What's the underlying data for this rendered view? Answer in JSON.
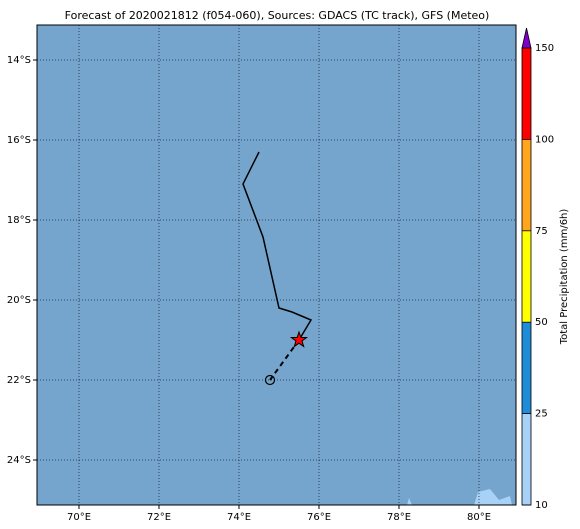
{
  "map": {
    "title": "Forecast of 2020021812 (f054-060), Sources: GDACS (TC track), GFS (Meteo)",
    "xlim": [
      68.95,
      80.925
    ],
    "ylim": [
      -25.125,
      -13.125
    ],
    "xticks": [
      {
        "value": 70,
        "label": "70°E"
      },
      {
        "value": 72,
        "label": "72°E"
      },
      {
        "value": 74,
        "label": "74°E"
      },
      {
        "value": 76,
        "label": "76°E"
      },
      {
        "value": 78,
        "label": "78°E"
      },
      {
        "value": 80,
        "label": "80°E"
      }
    ],
    "yticks": [
      {
        "value": -14,
        "label": "14°S"
      },
      {
        "value": -16,
        "label": "16°S"
      },
      {
        "value": -18,
        "label": "18°S"
      },
      {
        "value": -20,
        "label": "20°S"
      },
      {
        "value": -22,
        "label": "22°S"
      },
      {
        "value": -24,
        "label": "24°S"
      }
    ],
    "track": {
      "lon": [
        74.5,
        74.1,
        74.6,
        75.0,
        75.325,
        75.8,
        75.5
      ],
      "lat": [
        -16.3,
        -17.1,
        -18.425,
        -20.2,
        -20.3,
        -20.5,
        -21.0
      ],
      "color": "#000000"
    },
    "forecast": {
      "lon": [
        75.5,
        74.775
      ],
      "lat": [
        -21.0,
        -22.0
      ],
      "color": "#000000"
    },
    "current_position": {
      "lon": 75.5,
      "lat": -21.0,
      "color": "#ff0000"
    },
    "colorbar": {
      "label": "Total Precipitation (mm/6h)",
      "bounds": [
        10,
        25,
        50,
        75,
        100,
        150
      ],
      "colors": [
        "#a8d1f7",
        "#1e8cd6",
        "#ffff00",
        "#ffa61c",
        "#ff0000"
      ],
      "extend_color": "#7f00c8"
    }
  }
}
